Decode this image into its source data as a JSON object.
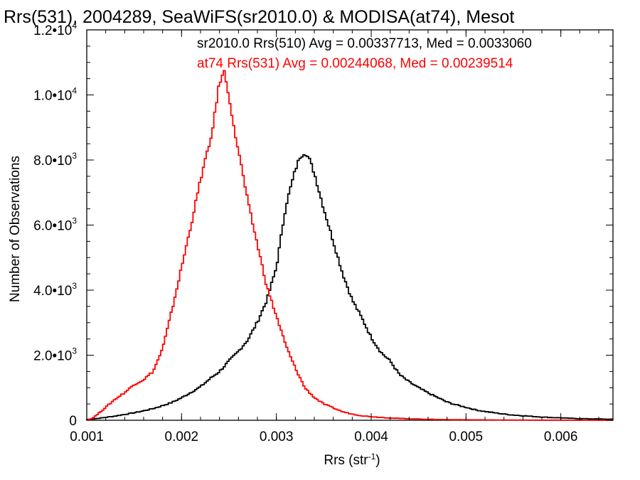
{
  "chart_data": {
    "type": "line",
    "title": "Rrs(531), 2004289, SeaWiFS(sr2010.0) & MODISA(at74), Mesot",
    "xlabel": "Rrs (str",
    "xlabel_sup": "-1",
    "xlabel_suffix": ")",
    "ylabel": "Number of Observations",
    "xlim": [
      0.001,
      0.00655
    ],
    "ylim": [
      0,
      12000
    ],
    "grid": false,
    "legend_placement": "top-right",
    "x_ticks": [
      {
        "value": 0.001,
        "label": "0.001"
      },
      {
        "value": 0.002,
        "label": "0.002"
      },
      {
        "value": 0.003,
        "label": "0.003"
      },
      {
        "value": 0.004,
        "label": "0.004"
      },
      {
        "value": 0.005,
        "label": "0.005"
      },
      {
        "value": 0.006,
        "label": "0.006"
      }
    ],
    "y_ticks": [
      {
        "value": 0,
        "base": "0",
        "exp": ""
      },
      {
        "value": 2000,
        "base": "2.0•10",
        "exp": "3"
      },
      {
        "value": 4000,
        "base": "4.0•10",
        "exp": "3"
      },
      {
        "value": 6000,
        "base": "6.0•10",
        "exp": "3"
      },
      {
        "value": 8000,
        "base": "8.0•10",
        "exp": "3"
      },
      {
        "value": 10000,
        "base": "1.0•10",
        "exp": "4"
      },
      {
        "value": 12000,
        "base": "1.2•10",
        "exp": "4"
      }
    ],
    "series": [
      {
        "name": "sr2010.0 Rrs(510) Avg = 0.00337713, Med = 0.0033060",
        "color": "#000000",
        "x": [
          0.001,
          0.0011,
          0.0012,
          0.0013,
          0.0014,
          0.0015,
          0.0016,
          0.0017,
          0.0018,
          0.0019,
          0.002,
          0.0021,
          0.0022,
          0.0023,
          0.0024,
          0.0025,
          0.0026,
          0.0027,
          0.0028,
          0.0029,
          0.003,
          0.0031,
          0.0032,
          0.00325,
          0.0033,
          0.00335,
          0.0034,
          0.0035,
          0.0036,
          0.0037,
          0.0038,
          0.0039,
          0.004,
          0.0041,
          0.0042,
          0.0043,
          0.0044,
          0.0045,
          0.0046,
          0.0047,
          0.0048,
          0.0049,
          0.005,
          0.0051,
          0.0052,
          0.0053,
          0.0054,
          0.0055,
          0.0056,
          0.0057,
          0.0058,
          0.0059,
          0.006,
          0.0061,
          0.0062,
          0.0063,
          0.0064,
          0.0065
        ],
        "y": [
          20,
          50,
          90,
          130,
          180,
          230,
          290,
          360,
          450,
          550,
          690,
          860,
          1030,
          1280,
          1500,
          1820,
          2120,
          2480,
          3020,
          3700,
          4700,
          6600,
          7700,
          8100,
          8250,
          8000,
          7600,
          6500,
          5500,
          4500,
          3700,
          3150,
          2550,
          2100,
          1820,
          1400,
          1180,
          1000,
          840,
          700,
          560,
          470,
          400,
          320,
          270,
          230,
          190,
          160,
          140,
          120,
          100,
          85,
          75,
          60,
          50,
          45,
          40,
          30
        ]
      },
      {
        "name": "at74 Rrs(531) Avg = 0.00244068, Med = 0.00239514",
        "color": "#ff0000",
        "x": [
          0.001,
          0.00105,
          0.0011,
          0.0012,
          0.0013,
          0.0014,
          0.0015,
          0.0016,
          0.0017,
          0.0018,
          0.0019,
          0.002,
          0.0021,
          0.0022,
          0.00225,
          0.0023,
          0.00235,
          0.0024,
          0.00245,
          0.0025,
          0.00255,
          0.0026,
          0.0027,
          0.0028,
          0.0029,
          0.003,
          0.0031,
          0.0032,
          0.0033,
          0.0034,
          0.0035,
          0.0036,
          0.0037,
          0.0038,
          0.0039,
          0.004,
          0.0042,
          0.0044,
          0.0046,
          0.0048,
          0.005,
          0.0052,
          0.0054,
          0.0056,
          0.0058,
          0.006,
          0.0062,
          0.0064,
          0.0065
        ],
        "y": [
          0,
          50,
          150,
          400,
          650,
          850,
          1100,
          1250,
          1500,
          2200,
          3400,
          4700,
          6000,
          7400,
          8000,
          8500,
          9400,
          10400,
          10700,
          10000,
          9000,
          8300,
          6700,
          5400,
          4100,
          3200,
          2300,
          1600,
          1000,
          700,
          500,
          380,
          260,
          190,
          140,
          110,
          70,
          45,
          30,
          20,
          15,
          10,
          8,
          5,
          4,
          3,
          2,
          1,
          1
        ]
      }
    ]
  }
}
